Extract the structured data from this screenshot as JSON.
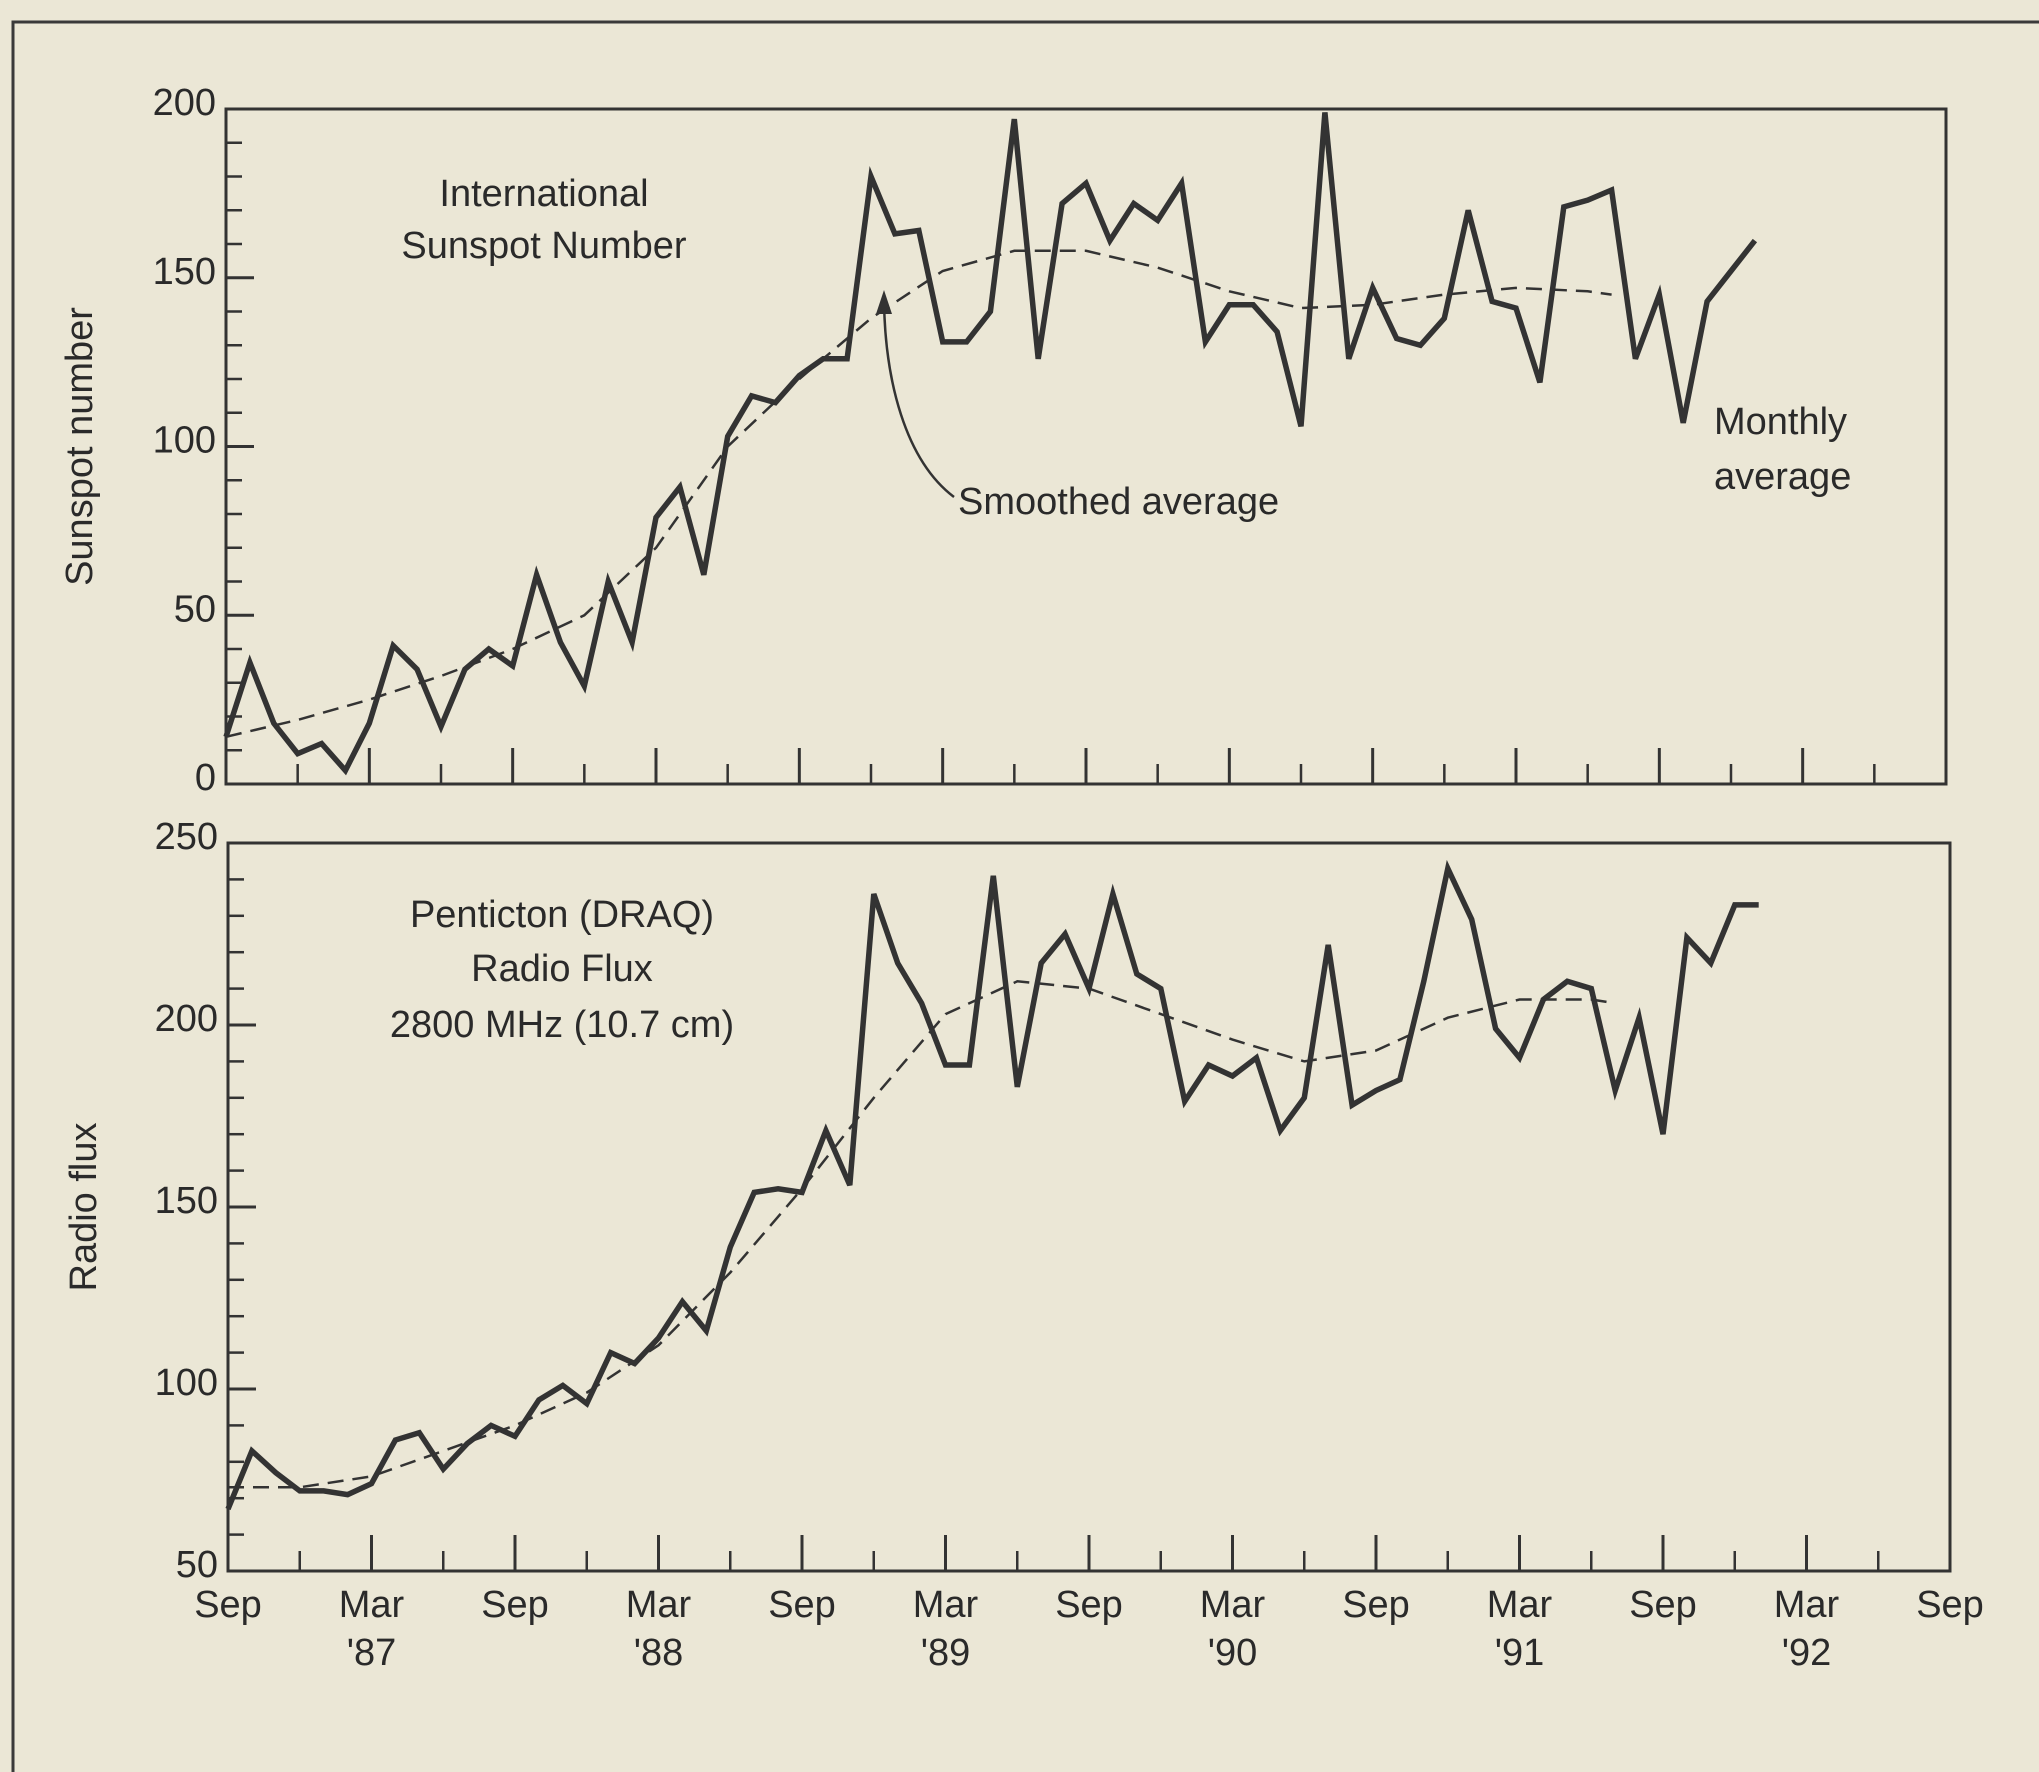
{
  "chart_data": [
    {
      "type": "line",
      "ylabel": "Sunspot number",
      "xlim": [
        0,
        72
      ],
      "ylim": [
        0,
        200
      ],
      "xticks": [
        0,
        6,
        12,
        18,
        24,
        30,
        36,
        42,
        48,
        54,
        60,
        66,
        72
      ],
      "xminor_ticks": [
        3,
        9,
        15,
        21,
        27,
        33,
        39,
        45,
        51,
        57,
        63,
        69
      ],
      "yticks": [
        0,
        50,
        100,
        150,
        200
      ],
      "yminor_ticks": [
        10,
        20,
        30,
        40,
        60,
        70,
        80,
        90,
        110,
        120,
        130,
        140,
        160,
        170,
        180,
        190
      ],
      "annotations": [
        {
          "lines": [
            "International",
            "Sunspot Number"
          ]
        },
        {
          "lines": [
            "Smoothed average"
          ]
        },
        {
          "lines": [
            "Monthly",
            "average"
          ]
        }
      ],
      "series": [
        {
          "color": "#333333",
          "style": "solid",
          "x": [
            0,
            1,
            2,
            3,
            4,
            5,
            6,
            7,
            8,
            9,
            10,
            11,
            12,
            13,
            14,
            15,
            16,
            17,
            18,
            19,
            20,
            21,
            22,
            23,
            24,
            25,
            26,
            27,
            28,
            29,
            30,
            31,
            32,
            33,
            34,
            35,
            36,
            37,
            38,
            39,
            40,
            41,
            42,
            43,
            44,
            45,
            46,
            47,
            48,
            49,
            50,
            51,
            52,
            53,
            54,
            55,
            56,
            57,
            58,
            59,
            60,
            61,
            62,
            63,
            64
          ],
          "values": [
            14,
            36,
            18,
            9,
            12,
            4,
            18,
            41,
            34,
            17,
            34,
            40,
            35,
            62,
            42,
            29,
            60,
            42,
            79,
            88,
            62,
            103,
            115,
            113,
            121,
            126,
            126,
            180,
            163,
            164,
            131,
            131,
            140,
            197,
            126,
            172,
            178,
            161,
            172,
            167,
            178,
            131,
            142,
            142,
            134,
            106,
            199,
            126,
            147,
            132,
            130,
            138,
            170,
            143,
            141,
            119,
            171,
            173,
            176,
            126,
            145,
            107,
            143,
            152,
            161
          ]
        },
        {
          "color": "#333333",
          "style": "dashed",
          "x": [
            0,
            3,
            6,
            9,
            12,
            15,
            18,
            21,
            24,
            27,
            30,
            33,
            36,
            39,
            42,
            45,
            48,
            51,
            54,
            57,
            58
          ],
          "values": [
            14,
            19,
            25,
            32,
            40,
            50,
            70,
            100,
            120,
            138,
            152,
            158,
            158,
            153,
            146,
            141,
            142,
            145,
            147,
            146,
            145
          ]
        }
      ]
    },
    {
      "type": "line",
      "ylabel": "Radio flux",
      "xlim": [
        0,
        72
      ],
      "ylim": [
        50,
        250
      ],
      "xticks": [
        {
          "value": 0,
          "label": "Sep"
        },
        {
          "value": 6,
          "label": "Mar"
        },
        {
          "value": 12,
          "label": "Sep"
        },
        {
          "value": 18,
          "label": "Mar"
        },
        {
          "value": 24,
          "label": "Sep"
        },
        {
          "value": 30,
          "label": "Mar"
        },
        {
          "value": 36,
          "label": "Sep"
        },
        {
          "value": 42,
          "label": "Mar"
        },
        {
          "value": 48,
          "label": "Sep"
        },
        {
          "value": 54,
          "label": "Mar"
        },
        {
          "value": 60,
          "label": "Sep"
        },
        {
          "value": 66,
          "label": "Mar"
        },
        {
          "value": 72,
          "label": "Sep"
        }
      ],
      "xtick_years": [
        {
          "value": 6,
          "label": "'87"
        },
        {
          "value": 18,
          "label": "'88"
        },
        {
          "value": 30,
          "label": "'89"
        },
        {
          "value": 42,
          "label": "'90"
        },
        {
          "value": 54,
          "label": "'91"
        },
        {
          "value": 66,
          "label": "'92"
        }
      ],
      "xminor_ticks": [
        3,
        9,
        15,
        21,
        27,
        33,
        39,
        45,
        51,
        57,
        63,
        69
      ],
      "yticks": [
        50,
        100,
        150,
        200,
        250
      ],
      "yminor_ticks": [
        60,
        70,
        80,
        90,
        110,
        120,
        130,
        140,
        160,
        170,
        180,
        190,
        210,
        220,
        230,
        240
      ],
      "annotations": [
        {
          "lines": [
            "Penticton (DRAQ)",
            "Radio Flux",
            "2800 MHz (10.7 cm)"
          ]
        }
      ],
      "series": [
        {
          "color": "#333333",
          "style": "solid",
          "x": [
            0,
            1,
            2,
            3,
            4,
            5,
            6,
            7,
            8,
            9,
            10,
            11,
            12,
            13,
            14,
            15,
            16,
            17,
            18,
            19,
            20,
            21,
            22,
            23,
            24,
            25,
            26,
            27,
            28,
            29,
            30,
            31,
            32,
            33,
            34,
            35,
            36,
            37,
            38,
            39,
            40,
            41,
            42,
            43,
            44,
            45,
            46,
            47,
            48,
            49,
            50,
            51,
            52,
            53,
            54,
            55,
            56,
            57,
            58,
            59,
            60,
            61,
            62,
            63,
            64
          ],
          "values": [
            67,
            83,
            77,
            72,
            72,
            71,
            74,
            86,
            88,
            78,
            85,
            90,
            87,
            97,
            101,
            96,
            110,
            107,
            114,
            124,
            116,
            139,
            154,
            155,
            154,
            171,
            156,
            236,
            217,
            206,
            189,
            189,
            241,
            183,
            217,
            225,
            210,
            236,
            214,
            210,
            179,
            189,
            186,
            191,
            171,
            180,
            222,
            178,
            182,
            185,
            212,
            243,
            229,
            199,
            191,
            207,
            212,
            210,
            182,
            202,
            170,
            224,
            217,
            233,
            233
          ]
        },
        {
          "color": "#333333",
          "style": "dashed",
          "x": [
            0,
            3,
            6,
            9,
            12,
            15,
            18,
            21,
            24,
            27,
            30,
            33,
            36,
            39,
            42,
            45,
            48,
            51,
            54,
            57,
            58
          ],
          "values": [
            73,
            73,
            76,
            83,
            90,
            99,
            112,
            132,
            155,
            180,
            203,
            212,
            210,
            203,
            196,
            190,
            193,
            202,
            207,
            207,
            206
          ]
        }
      ]
    }
  ]
}
